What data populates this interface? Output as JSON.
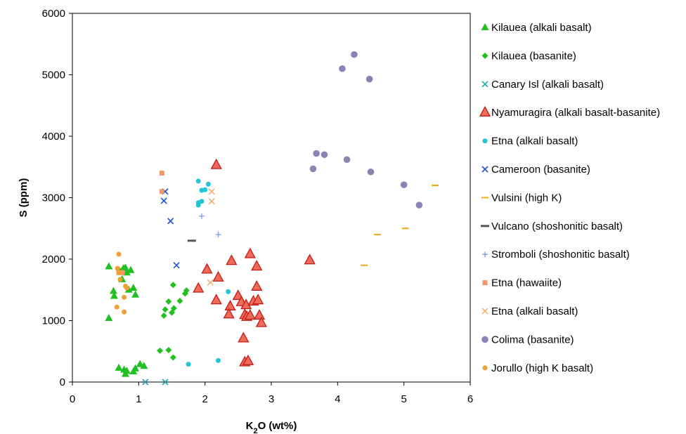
{
  "chart_data": {
    "type": "scatter",
    "title": "",
    "xlabel": {
      "main": "K",
      "sub": "2",
      "rest": "O (wt%)"
    },
    "ylabel": "S (ppm)",
    "xlim": [
      0,
      6
    ],
    "ylim": [
      0,
      6000
    ],
    "xticks": [
      "0",
      "1",
      "2",
      "3",
      "4",
      "5",
      "6"
    ],
    "yticks": [
      "0",
      "1000",
      "2000",
      "3000",
      "4000",
      "5000",
      "6000"
    ],
    "grid": false,
    "legend_position": "right",
    "series": [
      {
        "name": "Kilauea (alkali basalt)",
        "marker": "triangle",
        "color": "#1fc01f",
        "points": [
          [
            0.55,
            1880
          ],
          [
            0.55,
            1040
          ],
          [
            0.62,
            1480
          ],
          [
            0.63,
            1400
          ],
          [
            0.72,
            1800
          ],
          [
            0.75,
            1670
          ],
          [
            0.77,
            1850
          ],
          [
            0.8,
            1860
          ],
          [
            0.82,
            1780
          ],
          [
            0.85,
            1500
          ],
          [
            0.88,
            1820
          ],
          [
            0.92,
            1530
          ],
          [
            0.95,
            1420
          ],
          [
            0.7,
            230
          ],
          [
            0.78,
            200
          ],
          [
            0.8,
            130
          ],
          [
            0.82,
            180
          ],
          [
            0.92,
            170
          ],
          [
            0.95,
            220
          ],
          [
            1.02,
            290
          ],
          [
            1.08,
            260
          ]
        ]
      },
      {
        "name": "Kilauea (basanite)",
        "marker": "diamond",
        "color": "#1fc01f",
        "points": [
          [
            1.38,
            1080
          ],
          [
            1.4,
            1180
          ],
          [
            1.45,
            1310
          ],
          [
            1.5,
            1130
          ],
          [
            1.52,
            1580
          ],
          [
            1.53,
            1200
          ],
          [
            1.62,
            1320
          ],
          [
            1.7,
            1440
          ],
          [
            1.72,
            1490
          ],
          [
            1.32,
            510
          ],
          [
            1.45,
            520
          ],
          [
            1.52,
            400
          ]
        ]
      },
      {
        "name": "Canary Isl (alkali basalt)",
        "marker": "x",
        "color": "#1aa8b6",
        "points": [
          [
            1.1,
            0
          ],
          [
            1.4,
            0
          ]
        ]
      },
      {
        "name": "Nyamuragira (alkali basalt-basanite)",
        "marker": "triangle-outline",
        "color": "#e8362f",
        "points": [
          [
            2.17,
            3530
          ],
          [
            2.03,
            1830
          ],
          [
            2.2,
            1700
          ],
          [
            1.9,
            1520
          ],
          [
            2.17,
            1330
          ],
          [
            2.4,
            1970
          ],
          [
            2.68,
            2080
          ],
          [
            2.78,
            1880
          ],
          [
            2.78,
            1550
          ],
          [
            2.5,
            1400
          ],
          [
            2.55,
            1300
          ],
          [
            2.62,
            1250
          ],
          [
            2.73,
            1310
          ],
          [
            2.38,
            1230
          ],
          [
            2.36,
            1100
          ],
          [
            2.6,
            1090
          ],
          [
            2.63,
            1060
          ],
          [
            2.68,
            1080
          ],
          [
            2.8,
            1330
          ],
          [
            2.82,
            1080
          ],
          [
            2.85,
            960
          ],
          [
            2.58,
            710
          ],
          [
            2.6,
            320
          ],
          [
            2.65,
            340
          ],
          [
            3.58,
            1980
          ]
        ]
      },
      {
        "name": "Etna (alkali basalt)",
        "marker": "circle",
        "color": "#22c4d8",
        "points": [
          [
            1.9,
            3270
          ],
          [
            1.95,
            3120
          ],
          [
            2.0,
            3130
          ],
          [
            2.05,
            3220
          ],
          [
            1.9,
            2920
          ],
          [
            1.95,
            2940
          ],
          [
            1.9,
            2880
          ],
          [
            2.35,
            1470
          ],
          [
            1.75,
            290
          ],
          [
            2.2,
            350
          ]
        ]
      },
      {
        "name": "Cameroon (basanite)",
        "marker": "x",
        "color": "#2255c8",
        "points": [
          [
            1.4,
            3100
          ],
          [
            1.38,
            2950
          ],
          [
            1.48,
            2620
          ],
          [
            1.57,
            1900
          ]
        ]
      },
      {
        "name": "Vulsini (high K)",
        "marker": "dash",
        "color": "#f0b020",
        "points": [
          [
            4.4,
            1900
          ],
          [
            4.6,
            2400
          ],
          [
            5.02,
            2500
          ],
          [
            5.47,
            3200
          ]
        ]
      },
      {
        "name": "Vulcano (shoshonitic basalt)",
        "marker": "dash-bold",
        "color": "#555555",
        "points": [
          [
            1.8,
            2300
          ]
        ]
      },
      {
        "name": "Stromboli (shoshonitic basalt)",
        "marker": "plus",
        "color": "#7a9be0",
        "points": [
          [
            1.95,
            2700
          ],
          [
            2.2,
            2400
          ]
        ]
      },
      {
        "name": "Etna (hawaiite)",
        "marker": "square",
        "color": "#f4956a",
        "points": [
          [
            1.35,
            3400
          ],
          [
            1.35,
            3100
          ],
          [
            0.7,
            1780
          ],
          [
            0.75,
            1780
          ]
        ]
      },
      {
        "name": "Etna (alkali basalt)",
        "marker": "x",
        "color": "#f2b27a",
        "points": [
          [
            2.1,
            3100
          ],
          [
            2.1,
            2940
          ],
          [
            2.08,
            1620
          ]
        ]
      },
      {
        "name": "Colima (basanite)",
        "marker": "circle-large",
        "color": "#8a84b6",
        "points": [
          [
            4.25,
            5330
          ],
          [
            4.07,
            5100
          ],
          [
            4.48,
            4930
          ],
          [
            3.68,
            3720
          ],
          [
            3.8,
            3700
          ],
          [
            4.14,
            3620
          ],
          [
            3.63,
            3470
          ],
          [
            4.5,
            3420
          ],
          [
            5.0,
            3210
          ],
          [
            5.23,
            2880
          ]
        ]
      },
      {
        "name": "Jorullo (high K basalt)",
        "marker": "circle",
        "color": "#f0a030",
        "points": [
          [
            0.7,
            2080
          ],
          [
            0.68,
            1850
          ],
          [
            0.7,
            1780
          ],
          [
            0.72,
            1670
          ],
          [
            0.8,
            1560
          ],
          [
            0.82,
            1530
          ],
          [
            0.78,
            1380
          ],
          [
            0.67,
            1220
          ],
          [
            0.78,
            1140
          ]
        ]
      }
    ]
  }
}
